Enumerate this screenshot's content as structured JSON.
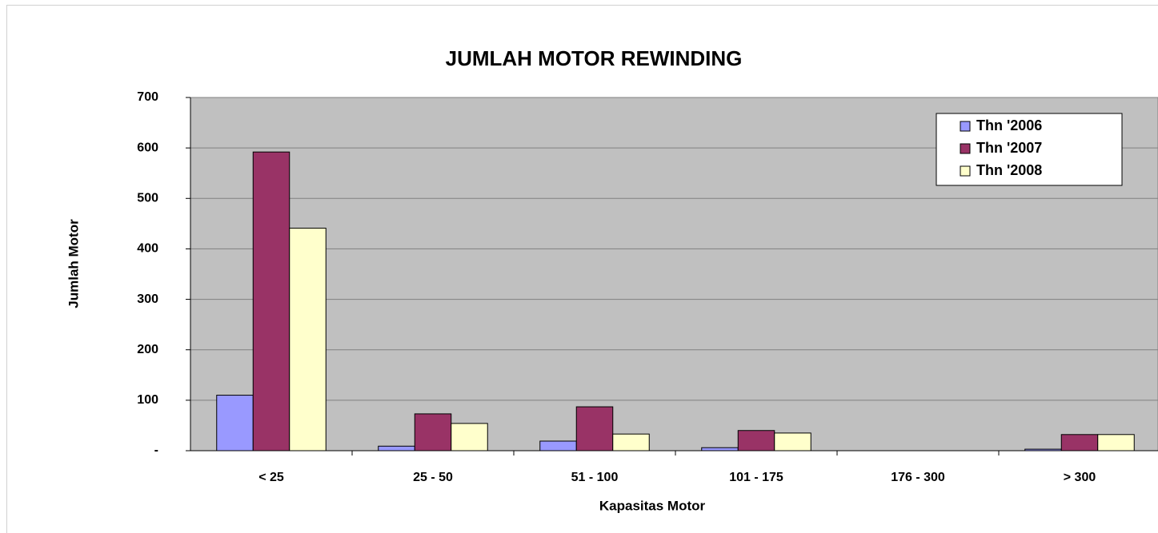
{
  "chart_data": {
    "type": "bar",
    "title": "JUMLAH MOTOR REWINDING",
    "x_label": "Kapasitas Motor",
    "y_label": "Jumlah Motor",
    "categories": [
      "< 25",
      "25 - 50",
      "51 - 100",
      "101 - 175",
      "176 - 300",
      "> 300"
    ],
    "series": [
      {
        "name": "Thn '2006",
        "color": "#9999ff",
        "values": [
          110,
          9,
          19,
          6,
          0,
          3
        ]
      },
      {
        "name": "Thn '2007",
        "color": "#993366",
        "values": [
          592,
          73,
          87,
          40,
          0,
          32
        ]
      },
      {
        "name": "Thn '2008",
        "color": "#ffffcc",
        "values": [
          441,
          54,
          33,
          35,
          0,
          32
        ]
      }
    ],
    "ylim": [
      0,
      700
    ],
    "yticks": [
      {
        "value": 0,
        "label": "-"
      },
      100,
      200,
      300,
      400,
      500,
      600,
      700
    ],
    "grid": true,
    "legend": "top-right"
  }
}
